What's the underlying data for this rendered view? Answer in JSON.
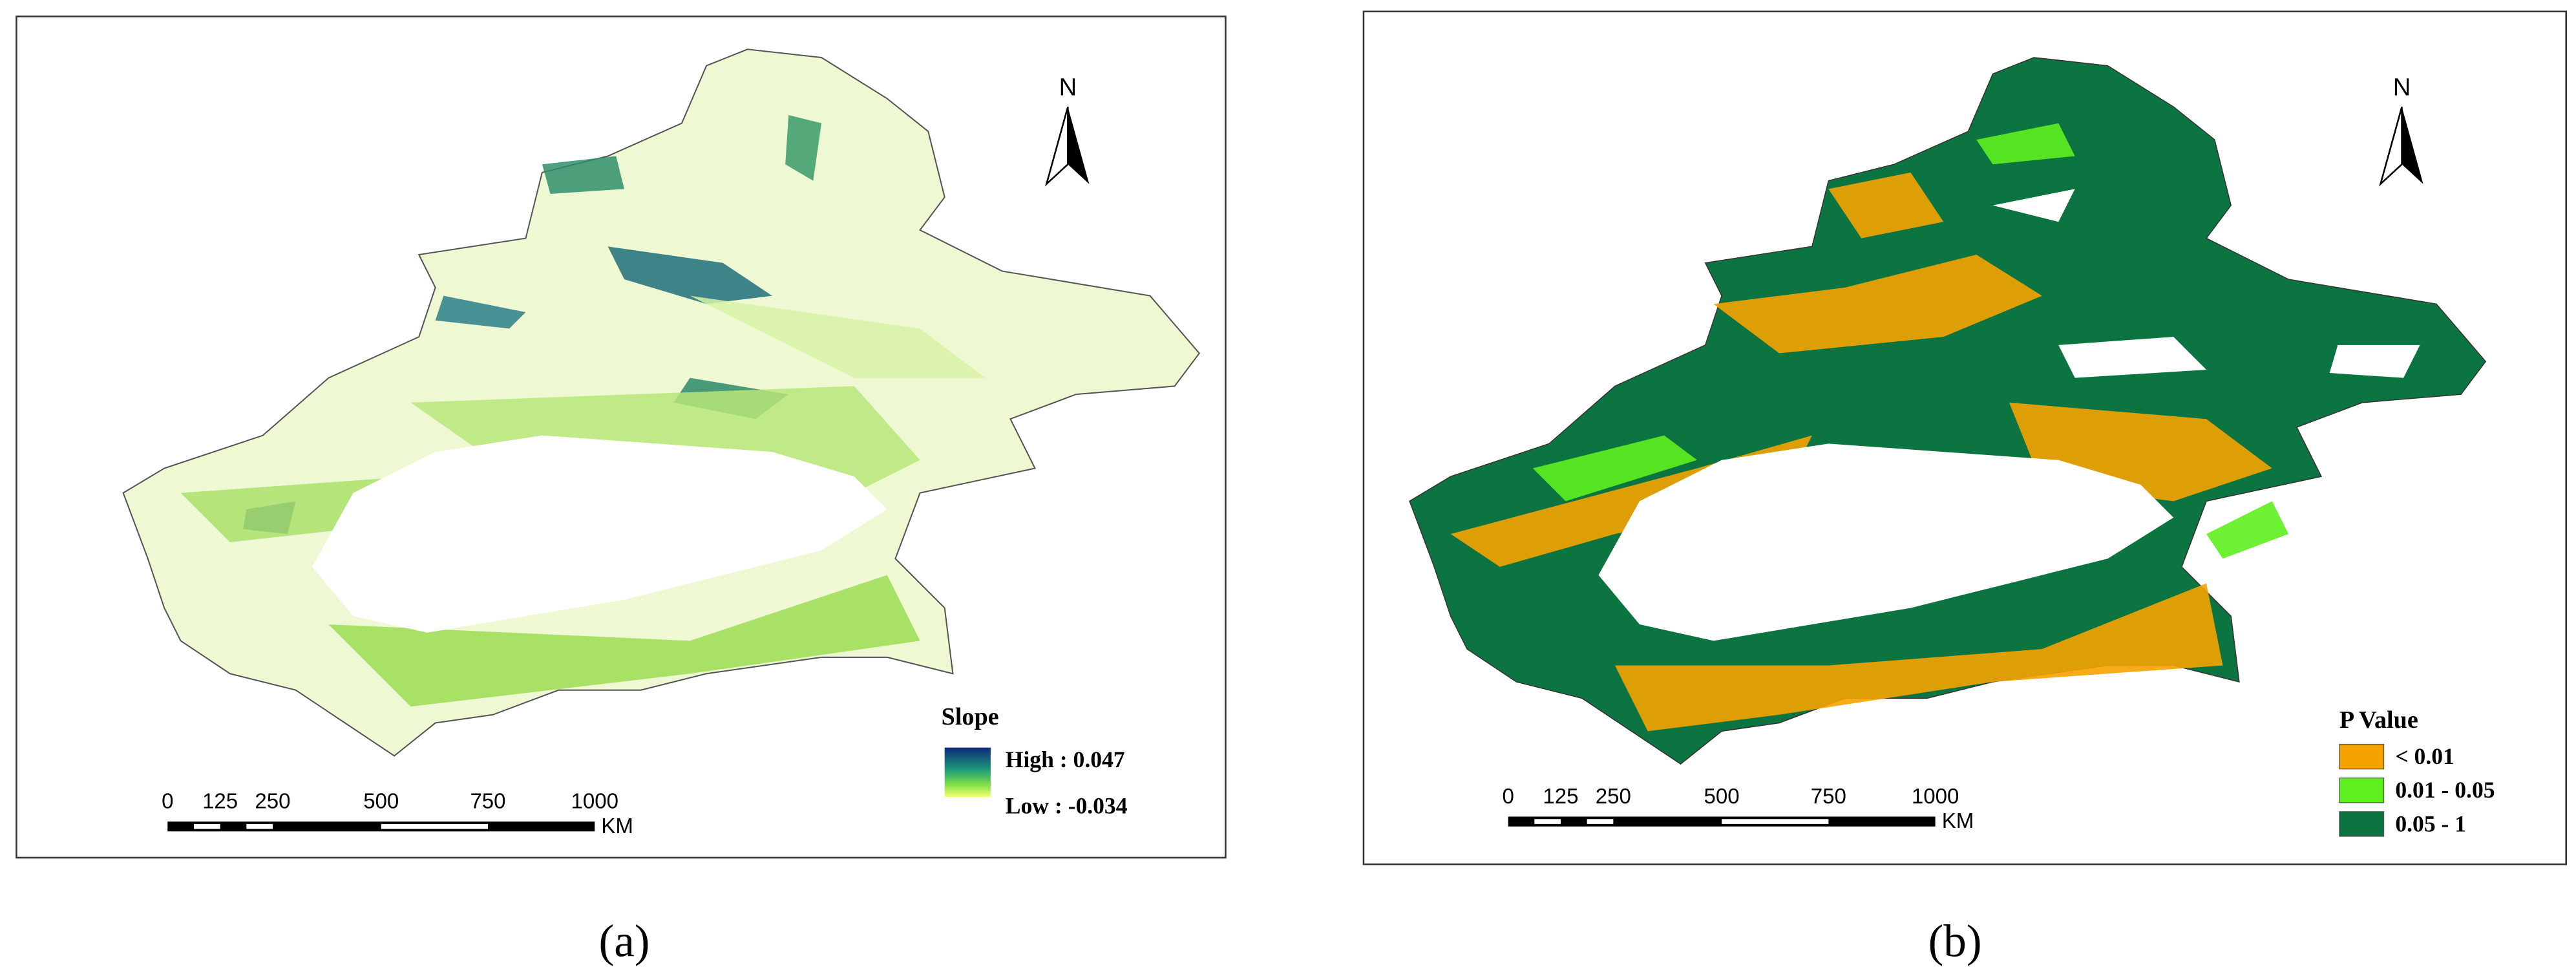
{
  "panels": [
    {
      "caption": "(a)",
      "north": "N",
      "scale_bar": {
        "labels": [
          "0",
          "125",
          "250",
          "500",
          "750",
          "1000"
        ],
        "unit": "KM"
      },
      "legend": {
        "title": "Slope",
        "high": "High : 0.047",
        "low": "Low : -0.034"
      }
    },
    {
      "caption": "(b)",
      "north": "N",
      "scale_bar": {
        "labels": [
          "0",
          "125",
          "250",
          "500",
          "750",
          "1000"
        ],
        "unit": "KM"
      },
      "legend": {
        "title": "P Value",
        "items": [
          {
            "label": "< 0.01",
            "color": "#f5a300"
          },
          {
            "label": "0.01 - 0.05",
            "color": "#5ef01e"
          },
          {
            "label": "0.05 - 1",
            "color": "#0b7440"
          }
        ]
      }
    }
  ]
}
